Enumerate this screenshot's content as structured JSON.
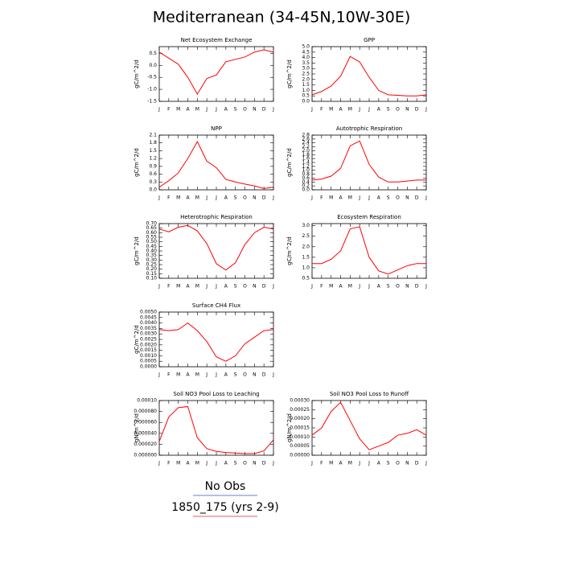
{
  "title": "Mediterranean (34-45N,10W-30E)",
  "legend": [
    {
      "name": "No Obs",
      "color": "#6a7fd0"
    },
    {
      "name": "1850_175 (yrs 2-9)",
      "color": "#e06060"
    }
  ],
  "chart_data": [
    {
      "type": "line",
      "title": "Net Ecosystem Exchange",
      "ylabel": "gC/m^2/d",
      "color": "#ff0000",
      "categories": [
        "J",
        "F",
        "M",
        "A",
        "M",
        "J",
        "J",
        "A",
        "S",
        "O",
        "N",
        "D",
        "J"
      ],
      "values": [
        0.55,
        0.3,
        0.05,
        -0.5,
        -1.2,
        -0.55,
        -0.4,
        0.15,
        0.25,
        0.35,
        0.55,
        0.65,
        0.55
      ],
      "ylim": [
        -1.5,
        0.78
      ],
      "yticks": [
        0.5,
        {
          "value": 0,
          "label": "0.0"
        },
        -0.5,
        {
          "value": -1,
          "label": "-1.0"
        },
        -1.5
      ]
    },
    {
      "type": "line",
      "title": "GPP",
      "ylabel": "gC/m^2/d",
      "color": "#ff0000",
      "categories": [
        "J",
        "F",
        "M",
        "A",
        "M",
        "J",
        "J",
        "A",
        "S",
        "O",
        "N",
        "D",
        "J"
      ],
      "values": [
        0.6,
        0.9,
        1.4,
        2.3,
        4.1,
        3.6,
        2.2,
        1.0,
        0.6,
        0.55,
        0.5,
        0.5,
        0.6
      ],
      "ylim": [
        0,
        5
      ],
      "yticks": [
        {
          "value": 0,
          "label": "0.0"
        },
        0.5,
        {
          "value": 1,
          "label": "1.0"
        },
        1.5,
        {
          "value": 2,
          "label": "2.0"
        },
        2.5,
        {
          "value": 3,
          "label": "3.0"
        },
        3.5,
        {
          "value": 4,
          "label": "4.0"
        },
        4.5,
        {
          "value": 5,
          "label": "5.0"
        }
      ]
    },
    {
      "type": "line",
      "title": "NPP",
      "ylabel": "gC/m^2/d",
      "color": "#ff0000",
      "categories": [
        "J",
        "F",
        "M",
        "A",
        "M",
        "J",
        "J",
        "A",
        "S",
        "O",
        "N",
        "D",
        "J"
      ],
      "values": [
        0.1,
        0.35,
        0.65,
        1.2,
        1.85,
        1.1,
        0.85,
        0.4,
        0.3,
        0.22,
        0.15,
        0.05,
        0.1
      ],
      "ylim": [
        0,
        2.1
      ],
      "yticks": [
        {
          "value": 0,
          "label": "0.0"
        },
        0.3,
        0.6,
        0.9,
        1.2,
        1.5,
        1.8,
        2.1
      ]
    },
    {
      "type": "line",
      "title": "Autotrophic Respiration",
      "ylabel": "gC/m^2/d",
      "color": "#ff0000",
      "categories": [
        "J",
        "F",
        "M",
        "A",
        "M",
        "J",
        "J",
        "A",
        "S",
        "O",
        "N",
        "D",
        "J"
      ],
      "values": [
        0.5,
        0.55,
        0.7,
        1.1,
        2.25,
        2.5,
        1.3,
        0.65,
        0.4,
        0.4,
        0.45,
        0.5,
        0.5
      ],
      "ylim": [
        0,
        2.8
      ],
      "yticks": [
        {
          "value": 0,
          "label": "0.0"
        },
        0.2,
        0.4,
        0.6,
        0.8,
        {
          "value": 1,
          "label": "1.0"
        },
        1.2,
        1.4,
        1.6,
        1.8,
        {
          "value": 2,
          "label": "2.0"
        },
        2.2,
        2.4,
        2.6,
        2.8
      ]
    },
    {
      "type": "line",
      "title": "Heterotrophic Respiration",
      "ylabel": "gC/m^2/d",
      "color": "#ff0000",
      "categories": [
        "J",
        "F",
        "M",
        "A",
        "M",
        "J",
        "J",
        "A",
        "S",
        "O",
        "N",
        "D",
        "J"
      ],
      "values": [
        0.64,
        0.61,
        0.66,
        0.68,
        0.62,
        0.48,
        0.26,
        0.19,
        0.27,
        0.47,
        0.6,
        0.66,
        0.64
      ],
      "ylim": [
        0.1,
        0.7
      ],
      "yticks": [
        {
          "value": 0.1,
          "label": "0.10"
        },
        0.15,
        {
          "value": 0.2,
          "label": "0.20"
        },
        0.25,
        {
          "value": 0.3,
          "label": "0.30"
        },
        0.35,
        {
          "value": 0.4,
          "label": "0.40"
        },
        0.45,
        {
          "value": 0.5,
          "label": "0.50"
        },
        0.55,
        {
          "value": 0.6,
          "label": "0.60"
        },
        0.65,
        {
          "value": 0.7,
          "label": "0.70"
        }
      ]
    },
    {
      "type": "line",
      "title": "Ecosystem Respiration",
      "ylabel": "gC/m^2/d",
      "color": "#ff0000",
      "categories": [
        "J",
        "F",
        "M",
        "A",
        "M",
        "J",
        "J",
        "A",
        "S",
        "O",
        "N",
        "D",
        "J"
      ],
      "values": [
        1.2,
        1.2,
        1.4,
        1.8,
        2.85,
        2.95,
        1.5,
        0.85,
        0.7,
        0.9,
        1.1,
        1.2,
        1.2
      ],
      "ylim": [
        0.5,
        3.1
      ],
      "yticks": [
        0.5,
        {
          "value": 1,
          "label": "1.0"
        },
        1.5,
        {
          "value": 2,
          "label": "2.0"
        },
        2.5,
        {
          "value": 3,
          "label": "3.0"
        }
      ]
    },
    {
      "type": "line",
      "title": "Surface CH4 Flux",
      "ylabel": "gC/m^2/d",
      "color": "#ff0000",
      "categories": [
        "J",
        "F",
        "M",
        "A",
        "M",
        "J",
        "J",
        "A",
        "S",
        "O",
        "N",
        "D",
        "J"
      ],
      "values": [
        0.0034,
        0.0033,
        0.0034,
        0.004,
        0.0033,
        0.0023,
        0.0009,
        0.0005,
        0.001,
        0.0021,
        0.0027,
        0.0033,
        0.0034
      ],
      "ylim": [
        0,
        0.005
      ],
      "yticks": [
        {
          "value": 0,
          "label": "0.0000"
        },
        0.0005,
        {
          "value": 0.001,
          "label": "0.0010"
        },
        0.0015,
        {
          "value": 0.002,
          "label": "0.0020"
        },
        0.0025,
        {
          "value": 0.003,
          "label": "0.0030"
        },
        0.0035,
        {
          "value": 0.004,
          "label": "0.0040"
        },
        0.0045,
        {
          "value": 0.005,
          "label": "0.0050"
        }
      ]
    },
    {
      "type": "line",
      "title": "Soil NO3 Pool Loss to Leaching",
      "ylabel": "gN/m^2/d",
      "color": "#ff0000",
      "categories": [
        "J",
        "F",
        "M",
        "A",
        "M",
        "J",
        "J",
        "A",
        "S",
        "O",
        "N",
        "D",
        "J"
      ],
      "values": [
        2.5e-05,
        7e-05,
        8.7e-05,
        8.9e-05,
        3.2e-05,
        1.2e-05,
        7e-06,
        5e-06,
        4e-06,
        3e-06,
        3e-06,
        8e-06,
        2.8e-05
      ],
      "ylim": [
        0,
        0.0001
      ],
      "yticks": [
        {
          "value": 0,
          "label": "0.000000"
        },
        {
          "value": 2e-05,
          "label": "0.000020"
        },
        {
          "value": 4e-05,
          "label": "0.000040"
        },
        {
          "value": 6e-05,
          "label": "0.000060"
        },
        {
          "value": 8e-05,
          "label": "0.000080"
        },
        {
          "value": 0.0001,
          "label": "0.00010"
        }
      ]
    },
    {
      "type": "line",
      "title": "Soil NO3 Pool Loss to Runoff",
      "ylabel": "gN/m^2/d",
      "color": "#ff0000",
      "categories": [
        "J",
        "F",
        "M",
        "A",
        "M",
        "J",
        "J",
        "A",
        "S",
        "O",
        "N",
        "D",
        "J"
      ],
      "values": [
        0.00011,
        0.00015,
        0.00024,
        0.00029,
        0.00019,
        9e-05,
        3e-05,
        5e-05,
        7e-05,
        0.00011,
        0.00012,
        0.00014,
        0.00011
      ],
      "ylim": [
        0,
        0.0003
      ],
      "yticks": [
        {
          "value": 0,
          "label": "0.00000"
        },
        5e-05,
        {
          "value": 0.0001,
          "label": "0.00010"
        },
        0.00015,
        {
          "value": 0.0002,
          "label": "0.00020"
        },
        0.00025,
        {
          "value": 0.0003,
          "label": "0.00030"
        }
      ]
    }
  ]
}
